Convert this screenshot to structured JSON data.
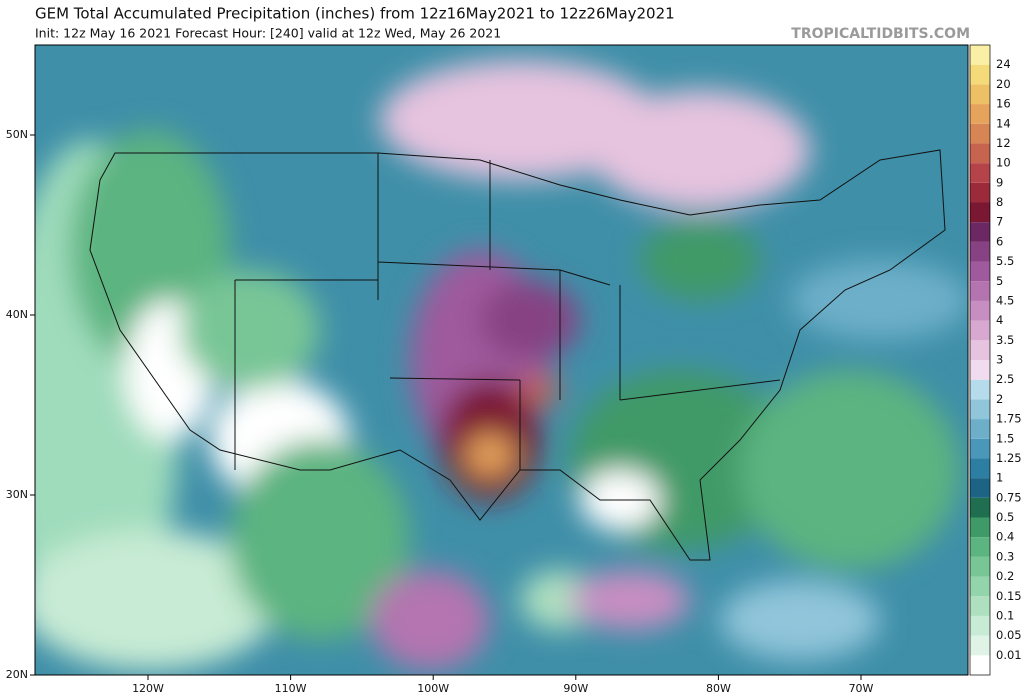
{
  "header": {
    "title": "GEM Total Accumulated Precipitation (inches) from 12z16May2021 to 12z26May2021",
    "subtitle": "Init: 12z May 16 2021   Forecast Hour: [240]   valid at 12z Wed, May 26 2021",
    "site": "TROPICALTIDBITS.COM"
  },
  "map": {
    "lat_labels": [
      "50N",
      "40N",
      "30N",
      "20N"
    ],
    "lon_labels": [
      "120W",
      "110W",
      "100W",
      "90W",
      "80W",
      "70W"
    ]
  },
  "colorbar": {
    "labels": [
      0.01,
      0.05,
      0.1,
      0.15,
      0.2,
      0.3,
      0.4,
      0.5,
      0.75,
      1,
      1.25,
      1.5,
      1.75,
      2,
      2.5,
      3,
      3.5,
      4,
      4.5,
      5,
      5.5,
      6,
      7,
      8,
      9,
      10,
      12,
      14,
      16,
      20,
      24
    ],
    "colors": [
      "#ffffff",
      "#dff4e6",
      "#c7ebd4",
      "#aee0c0",
      "#93d4ab",
      "#78c696",
      "#5cb480",
      "#3f9a68",
      "#1f6e50",
      "#1d6484",
      "#2c7ea2",
      "#4b97ba",
      "#6dafc9",
      "#90c5da",
      "#b6dceb",
      "#f0dcee",
      "#e6c3df",
      "#d7a8d0",
      "#c78ec2",
      "#b474b0",
      "#9e5a9c",
      "#864283",
      "#6b2862",
      "#7a1733",
      "#9b2b3b",
      "#b5444a",
      "#c7644f",
      "#d88556",
      "#e6a35c",
      "#eec066",
      "#f4da78",
      "#f9f0a6"
    ]
  }
}
